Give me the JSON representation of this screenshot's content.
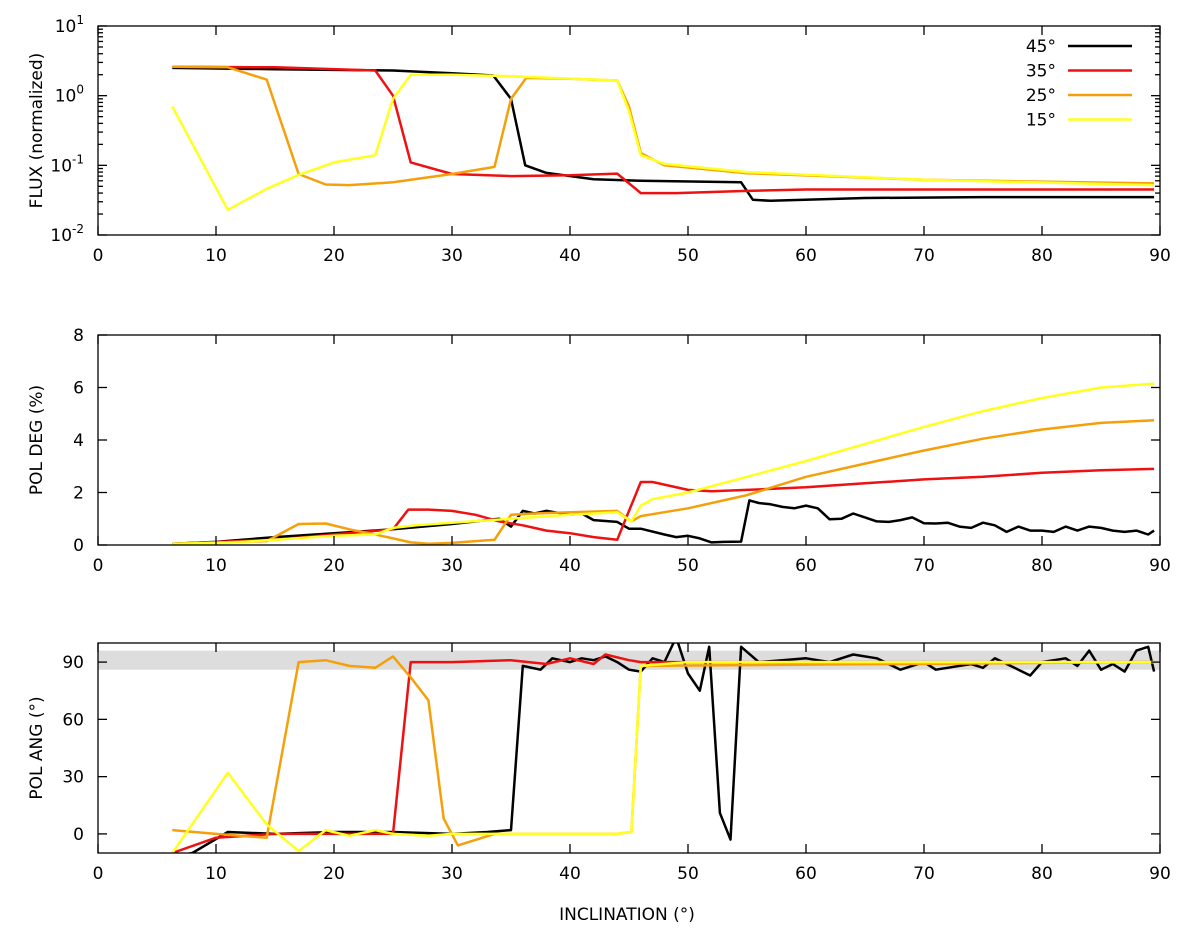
{
  "chart_data": [
    {
      "type": "line",
      "ylabel": "FLUX (normalized)",
      "xlabel": "",
      "yscale": "log",
      "xlim": [
        0,
        90
      ],
      "ylim": [
        0.01,
        10
      ],
      "xticks": [
        0,
        10,
        20,
        30,
        40,
        50,
        60,
        70,
        80,
        90
      ],
      "xtick_labels": [
        "0",
        "10",
        "20",
        "30",
        "40",
        "50",
        "60",
        "70",
        "80",
        "90"
      ],
      "yticks": [
        {
          "value": 10,
          "base": "10",
          "exp": "1"
        },
        {
          "value": 1,
          "base": "10",
          "exp": "0"
        },
        {
          "value": 0.1,
          "base": "10",
          "exp": "-1"
        },
        {
          "value": 0.01,
          "base": "10",
          "exp": "-2"
        }
      ],
      "legend": {
        "position": "top-right",
        "entries": [
          "45°",
          "35°",
          "25°",
          "15°"
        ]
      },
      "series": [
        {
          "name": "45°",
          "color": "#000000",
          "x": [
            6.3,
            15,
            25,
            30,
            33.5,
            35,
            36.2,
            38,
            42,
            46,
            54.5,
            55.5,
            57,
            65,
            75,
            89.5
          ],
          "y": [
            2.5,
            2.4,
            2.3,
            2.1,
            1.95,
            0.9,
            0.1,
            0.078,
            0.063,
            0.06,
            0.057,
            0.032,
            0.031,
            0.034,
            0.035,
            0.035
          ]
        },
        {
          "name": "35°",
          "color": "#ee1111",
          "x": [
            6.3,
            15,
            23.5,
            25,
            26.5,
            30,
            35,
            40,
            44,
            46,
            49,
            55,
            60,
            89.5
          ],
          "y": [
            2.6,
            2.55,
            2.3,
            1.0,
            0.11,
            0.075,
            0.07,
            0.072,
            0.076,
            0.04,
            0.04,
            0.043,
            0.045,
            0.045
          ]
        },
        {
          "name": "25°",
          "color": "#f5a00b",
          "x": [
            6.3,
            11,
            14.3,
            17,
            19.3,
            21.3,
            25,
            30,
            33.6,
            35,
            36.3,
            40,
            44,
            45,
            46,
            48,
            55,
            70,
            89.5
          ],
          "y": [
            2.6,
            2.55,
            1.7,
            0.075,
            0.053,
            0.052,
            0.057,
            0.075,
            0.095,
            0.9,
            1.8,
            1.75,
            1.65,
            0.7,
            0.15,
            0.1,
            0.077,
            0.062,
            0.055
          ]
        },
        {
          "name": "15°",
          "color": "#ffff22",
          "x": [
            6.3,
            11,
            14.3,
            17,
            20,
            23.5,
            25,
            26.5,
            30,
            35,
            44,
            45,
            46,
            48,
            55,
            70,
            89.5
          ],
          "y": [
            0.7,
            0.023,
            0.046,
            0.073,
            0.11,
            0.14,
            0.9,
            2.0,
            2.0,
            1.9,
            1.65,
            0.6,
            0.14,
            0.105,
            0.08,
            0.062,
            0.052
          ]
        }
      ]
    },
    {
      "type": "line",
      "ylabel": "POL DEG (%)",
      "xlabel": "",
      "xlim": [
        0,
        90
      ],
      "ylim": [
        0,
        8
      ],
      "xticks": [
        0,
        10,
        20,
        30,
        40,
        50,
        60,
        70,
        80,
        90
      ],
      "xtick_labels": [
        "0",
        "10",
        "20",
        "30",
        "40",
        "50",
        "60",
        "70",
        "80",
        "90"
      ],
      "yticks": [
        0,
        2,
        4,
        6,
        8
      ],
      "ytick_labels": [
        "0",
        "2",
        "4",
        "6",
        "8"
      ],
      "series": [
        {
          "name": "45°",
          "color": "#000000",
          "x": [
            6.3,
            10,
            15,
            20,
            25,
            30,
            34,
            35,
            36,
            37,
            38,
            40,
            41,
            42,
            44,
            45,
            46,
            48,
            49,
            50,
            51,
            52,
            53,
            54.5,
            55.2,
            56,
            57,
            58,
            59,
            60,
            61,
            62,
            63,
            64,
            65,
            66,
            67,
            68,
            69,
            70,
            71,
            72,
            73,
            74,
            75,
            76,
            77,
            78,
            79,
            80,
            81,
            82,
            83,
            84,
            85,
            86,
            87,
            88,
            89,
            89.5
          ],
          "y": [
            0.05,
            0.12,
            0.3,
            0.45,
            0.6,
            0.8,
            1.0,
            0.7,
            1.3,
            1.2,
            1.3,
            1.15,
            1.2,
            0.95,
            0.88,
            0.62,
            0.62,
            0.4,
            0.3,
            0.35,
            0.25,
            0.1,
            0.12,
            0.13,
            1.7,
            1.6,
            1.55,
            1.45,
            1.4,
            1.5,
            1.4,
            0.98,
            1.0,
            1.2,
            1.05,
            0.9,
            0.88,
            0.95,
            1.05,
            0.83,
            0.82,
            0.85,
            0.7,
            0.65,
            0.85,
            0.75,
            0.5,
            0.7,
            0.55,
            0.55,
            0.5,
            0.7,
            0.55,
            0.7,
            0.65,
            0.55,
            0.5,
            0.55,
            0.4,
            0.55
          ]
        },
        {
          "name": "35°",
          "color": "#ee1111",
          "x": [
            6.3,
            15,
            25,
            26.3,
            28,
            30,
            32,
            34,
            36,
            38,
            40,
            42,
            44,
            46,
            47,
            48,
            50,
            52,
            55,
            60,
            65,
            70,
            75,
            80,
            85,
            89.5
          ],
          "y": [
            0.05,
            0.2,
            0.6,
            1.35,
            1.35,
            1.3,
            1.15,
            0.9,
            0.75,
            0.55,
            0.45,
            0.3,
            0.2,
            2.4,
            2.4,
            2.3,
            2.1,
            2.05,
            2.1,
            2.2,
            2.35,
            2.5,
            2.6,
            2.75,
            2.85,
            2.9
          ]
        },
        {
          "name": "25°",
          "color": "#f5a00b",
          "x": [
            6.3,
            14.3,
            17,
            19.3,
            21.3,
            23.5,
            25,
            26.5,
            28,
            30,
            32,
            33.6,
            35,
            37,
            40,
            44,
            45.2,
            46,
            48,
            50,
            55,
            60,
            65,
            70,
            75,
            80,
            85,
            89.5
          ],
          "y": [
            0.05,
            0.15,
            0.8,
            0.82,
            0.6,
            0.4,
            0.25,
            0.1,
            0.05,
            0.08,
            0.15,
            0.2,
            1.15,
            1.2,
            1.25,
            1.3,
            0.9,
            1.1,
            1.25,
            1.4,
            1.9,
            2.6,
            3.1,
            3.6,
            4.05,
            4.4,
            4.65,
            4.75
          ]
        },
        {
          "name": "15°",
          "color": "#ffff22",
          "x": [
            6.3,
            11,
            15,
            20,
            23.5,
            25,
            27,
            30,
            35,
            40,
            44,
            45.2,
            46,
            47,
            50,
            55,
            60,
            65,
            70,
            75,
            80,
            85,
            89.5
          ],
          "y": [
            0.05,
            0.08,
            0.2,
            0.35,
            0.4,
            0.65,
            0.75,
            0.85,
            1.0,
            1.15,
            1.25,
            0.9,
            1.5,
            1.75,
            2.0,
            2.6,
            3.2,
            3.85,
            4.5,
            5.1,
            5.6,
            6.0,
            6.15
          ]
        }
      ]
    },
    {
      "type": "line",
      "ylabel": "POL ANG (°)",
      "xlabel": "INCLINATION (°)",
      "xlim": [
        0,
        90
      ],
      "ylim": [
        -10,
        100
      ],
      "shaded_band": [
        86,
        96
      ],
      "xticks": [
        0,
        10,
        20,
        30,
        40,
        50,
        60,
        70,
        80,
        90
      ],
      "xtick_labels": [
        "0",
        "10",
        "20",
        "30",
        "40",
        "50",
        "60",
        "70",
        "80",
        "90"
      ],
      "yticks": [
        0,
        30,
        60,
        90
      ],
      "ytick_labels": [
        "0",
        "30",
        "60",
        "90"
      ],
      "series": [
        {
          "name": "45°",
          "color": "#000000",
          "x": [
            6.3,
            8,
            11,
            15,
            20,
            25,
            30,
            33,
            35,
            36,
            37.5,
            38.5,
            40,
            41,
            42,
            43,
            44,
            45,
            46,
            47,
            48,
            49,
            50,
            51,
            51.8,
            52.7,
            53.6,
            54.5,
            56,
            58,
            60,
            62,
            64,
            66,
            68,
            70,
            71,
            72,
            74,
            75,
            76,
            78,
            79,
            80,
            82,
            83,
            84,
            85,
            86,
            87,
            88,
            89,
            89.5
          ],
          "y": [
            -12,
            -10,
            1,
            0,
            1,
            1,
            0,
            1,
            2,
            88,
            86,
            92,
            90,
            92,
            91,
            93,
            90,
            86,
            85,
            92,
            90,
            103,
            84,
            75,
            98,
            11,
            -3,
            98,
            90,
            91,
            92,
            90,
            94,
            92,
            86,
            90,
            86,
            87,
            89,
            87,
            92,
            86,
            83,
            90,
            92,
            88,
            96,
            86,
            89,
            85,
            96,
            98,
            85
          ]
        },
        {
          "name": "35°",
          "color": "#ee1111",
          "x": [
            6.3,
            10,
            15,
            20,
            25,
            26.5,
            30,
            35,
            38,
            40,
            42,
            43,
            45,
            46,
            89.5
          ],
          "y": [
            -10,
            -2,
            0,
            0,
            0,
            90,
            90,
            91,
            89,
            92,
            89,
            94,
            91,
            90,
            90
          ]
        },
        {
          "name": "25°",
          "color": "#f5a00b",
          "x": [
            6.3,
            10,
            14.3,
            17,
            19.3,
            21.3,
            23.5,
            25,
            26.5,
            28,
            29.3,
            30.5,
            33.6,
            35,
            40,
            44,
            45.2,
            46,
            89.5
          ],
          "y": [
            2,
            0,
            -2,
            90,
            91,
            88,
            87,
            93,
            82,
            70,
            8,
            -6,
            0,
            0,
            0,
            0,
            1,
            88,
            90
          ]
        },
        {
          "name": "15°",
          "color": "#ffff22",
          "x": [
            6.3,
            11,
            14.3,
            17,
            19.3,
            21.3,
            23.5,
            25,
            28,
            30,
            35,
            40,
            44,
            45.2,
            46,
            50,
            60,
            70,
            80,
            89.5
          ],
          "y": [
            -10,
            32,
            5,
            -9,
            2,
            -1,
            2,
            0,
            -1,
            0,
            0,
            0,
            0,
            1,
            88,
            90,
            90,
            90,
            90,
            90
          ]
        }
      ]
    }
  ]
}
